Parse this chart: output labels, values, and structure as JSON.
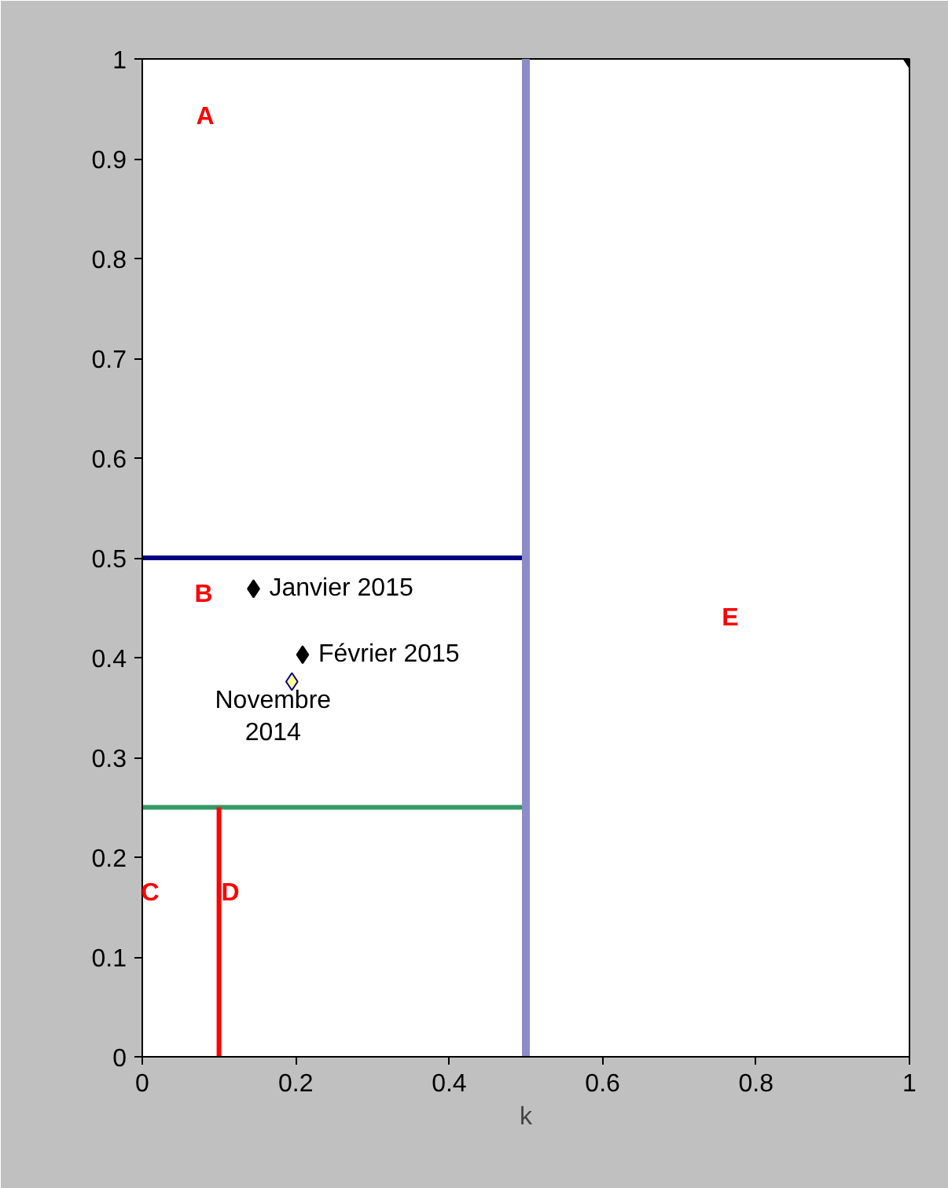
{
  "chart_data": {
    "type": "scatter",
    "xlabel": "k",
    "xlim": [
      0,
      1
    ],
    "ylim": [
      0,
      1
    ],
    "xticks": [
      0,
      0.2,
      0.4,
      0.6,
      0.8,
      1
    ],
    "yticks": [
      0,
      0.1,
      0.2,
      0.3,
      0.4,
      0.5,
      0.6,
      0.7,
      0.8,
      0.9,
      1
    ],
    "grid": false,
    "series": [
      {
        "type": "line",
        "x": [
          0,
          0.5
        ],
        "values": [
          0.5,
          0.5
        ],
        "color": "#000080",
        "line_style": "solid"
      },
      {
        "type": "line",
        "x": [
          0,
          0.5
        ],
        "values": [
          0.25,
          0.25
        ],
        "color": "#339966",
        "line_style": "solid"
      },
      {
        "type": "line",
        "x": [
          0.1,
          0.1
        ],
        "values": [
          0,
          0.25
        ],
        "color": "#ff0000",
        "line_style": "solid"
      },
      {
        "type": "line",
        "x": [
          0.5,
          0.5
        ],
        "values": [
          0,
          1
        ],
        "color": "#8c8cc8",
        "line_style": "solid"
      },
      {
        "x": [
          0.145,
          0.209,
          1
        ],
        "values": [
          0.469,
          0.403,
          1
        ],
        "color": "#000000",
        "marker": "diamond"
      },
      {
        "x": [
          0.195
        ],
        "values": [
          0.376
        ],
        "color": "#ffff99",
        "marker": "diamond"
      }
    ],
    "annotations": [
      "A",
      "B",
      "C",
      "D",
      "E",
      {
        "text": "Janvier 2015",
        "x": 0.145,
        "y": 0.469
      },
      {
        "text": "Février 2015",
        "x": 0.209,
        "y": 0.403
      },
      {
        "text": "Novembre\n2014",
        "x": 0.195,
        "y": 0.376
      }
    ]
  }
}
